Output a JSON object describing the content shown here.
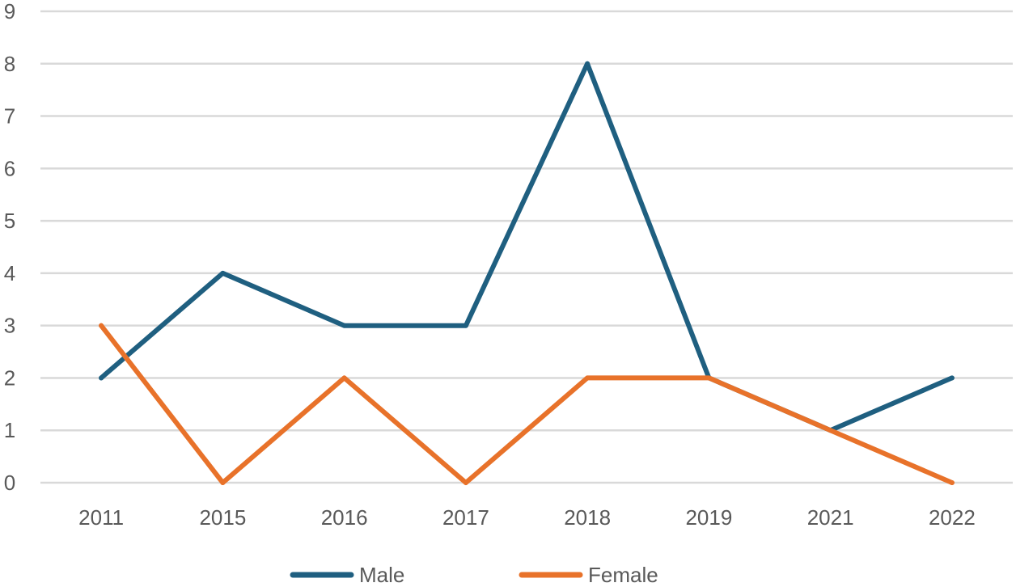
{
  "chart_data": {
    "type": "line",
    "title": "",
    "xlabel": "",
    "ylabel": "",
    "categories": [
      "2011",
      "2015",
      "2016",
      "2017",
      "2018",
      "2019",
      "2021",
      "2022"
    ],
    "ylim": [
      0,
      9
    ],
    "yticks": [
      "0",
      "1",
      "2",
      "3",
      "4",
      "5",
      "6",
      "7",
      "8",
      "9"
    ],
    "grid": true,
    "legend_position": "bottom",
    "series": [
      {
        "name": "Male",
        "color": "#1f5f80",
        "values": [
          2,
          4,
          3,
          3,
          8,
          2,
          1,
          2
        ]
      },
      {
        "name": "Female",
        "color": "#e8722a",
        "values": [
          3,
          0,
          2,
          0,
          2,
          2,
          1,
          0
        ]
      }
    ]
  }
}
